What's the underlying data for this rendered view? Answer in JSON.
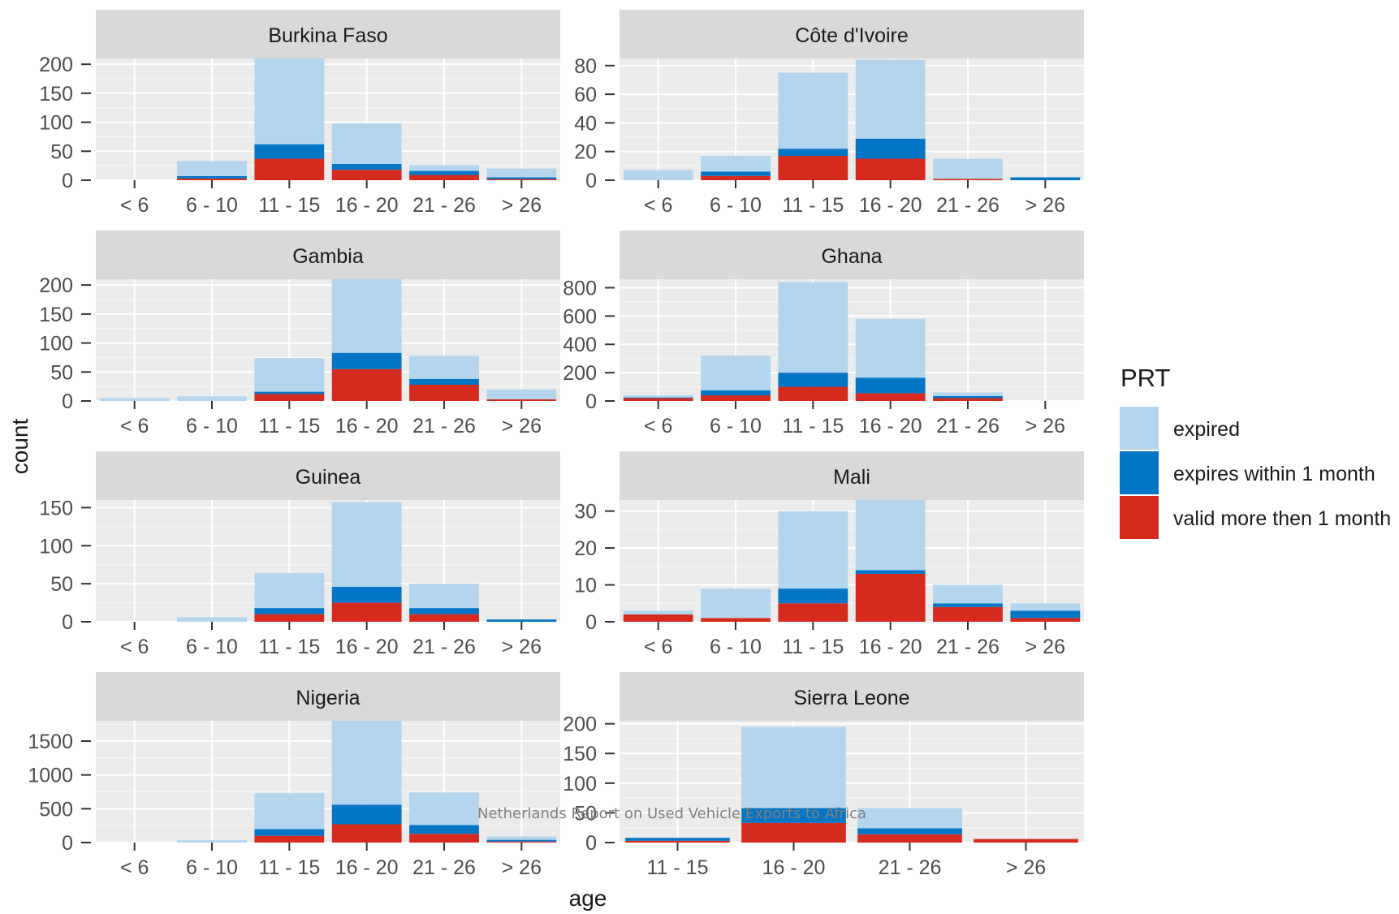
{
  "footer_note": "Netherlands Report on Used Vehicle Exports to Africa",
  "chart_data": {
    "type": "bar",
    "stacked": true,
    "xlabel": "age",
    "ylabel": "count",
    "grid": true,
    "legend_placement": "right",
    "colors": {
      "expired": "#b3d5ee",
      "expires within 1 month": "#0575c6",
      "valid more then 1 month": "#d52b1e",
      "panel_bg": "#ebebeb",
      "strip_bg": "#d9d9d9"
    },
    "legend": {
      "title": "PRT",
      "entries": [
        "expired",
        "expires within 1 month",
        "valid more then 1 month"
      ]
    },
    "facets": [
      {
        "title": "Burkina Faso",
        "categories": [
          "< 6",
          "6 - 10",
          "11 - 15",
          "16 - 20",
          "21 - 26",
          "> 26"
        ],
        "ylim": [
          0,
          210
        ],
        "yticks": [
          0,
          50,
          100,
          150,
          200
        ],
        "series": [
          {
            "name": "valid more then 1 month",
            "values": [
              0,
              3,
              37,
              18,
              9,
              2
            ]
          },
          {
            "name": "expires within 1 month",
            "values": [
              0,
              4,
              25,
              10,
              7,
              3
            ]
          },
          {
            "name": "expired",
            "values": [
              0,
              26,
              148,
              70,
              10,
              15
            ]
          }
        ]
      },
      {
        "title": "Côte d'Ivoire",
        "categories": [
          "< 6",
          "6 - 10",
          "11 - 15",
          "16 - 20",
          "21 - 26",
          "> 26"
        ],
        "ylim": [
          0,
          85
        ],
        "yticks": [
          0,
          20,
          40,
          60,
          80
        ],
        "series": [
          {
            "name": "valid more then 1 month",
            "values": [
              0,
              3,
              17,
              15,
              1,
              0
            ]
          },
          {
            "name": "expires within 1 month",
            "values": [
              0,
              3,
              5,
              14,
              0,
              2
            ]
          },
          {
            "name": "expired",
            "values": [
              7,
              11,
              53,
              55,
              14,
              0
            ]
          }
        ]
      },
      {
        "title": "Gambia",
        "categories": [
          "< 6",
          "6 - 10",
          "11 - 15",
          "16 - 20",
          "21 - 26",
          "> 26"
        ],
        "ylim": [
          0,
          210
        ],
        "yticks": [
          0,
          50,
          100,
          150,
          200
        ],
        "series": [
          {
            "name": "valid more then 1 month",
            "values": [
              0,
              0,
              12,
              55,
              28,
              3
            ]
          },
          {
            "name": "expires within 1 month",
            "values": [
              0,
              0,
              4,
              28,
              10,
              0
            ]
          },
          {
            "name": "expired",
            "values": [
              5,
              8,
              58,
              127,
              40,
              17
            ]
          }
        ]
      },
      {
        "title": "Ghana",
        "categories": [
          "< 6",
          "6 - 10",
          "11 - 15",
          "16 - 20",
          "21 - 26",
          "> 26"
        ],
        "ylim": [
          0,
          860
        ],
        "yticks": [
          0,
          200,
          400,
          600,
          800
        ],
        "series": [
          {
            "name": "valid more then 1 month",
            "values": [
              20,
              40,
              100,
              55,
              20,
              0
            ]
          },
          {
            "name": "expires within 1 month",
            "values": [
              5,
              35,
              100,
              110,
              15,
              0
            ]
          },
          {
            "name": "expired",
            "values": [
              15,
              245,
              640,
              415,
              25,
              0
            ]
          }
        ]
      },
      {
        "title": "Guinea",
        "categories": [
          "< 6",
          "6 - 10",
          "11 - 15",
          "16 - 20",
          "21 - 26",
          "> 26"
        ],
        "ylim": [
          0,
          160
        ],
        "yticks": [
          0,
          50,
          100,
          150
        ],
        "series": [
          {
            "name": "valid more then 1 month",
            "values": [
              0,
              0,
              10,
              25,
              10,
              0
            ]
          },
          {
            "name": "expires within 1 month",
            "values": [
              0,
              0,
              8,
              21,
              8,
              3
            ]
          },
          {
            "name": "expired",
            "values": [
              0,
              6,
              46,
              111,
              32,
              0
            ]
          }
        ]
      },
      {
        "title": "Mali",
        "categories": [
          "< 6",
          "6 - 10",
          "11 - 15",
          "16 - 20",
          "21 - 26",
          "> 26"
        ],
        "ylim": [
          0,
          33
        ],
        "yticks": [
          0,
          10,
          20,
          30
        ],
        "series": [
          {
            "name": "valid more then 1 month",
            "values": [
              2,
              1,
              5,
              13,
              4,
              1
            ]
          },
          {
            "name": "expires within 1 month",
            "values": [
              0,
              0,
              4,
              1,
              1,
              2
            ]
          },
          {
            "name": "expired",
            "values": [
              1,
              8,
              21,
              19,
              5,
              2
            ]
          }
        ]
      },
      {
        "title": "Nigeria",
        "categories": [
          "< 6",
          "6 - 10",
          "11 - 15",
          "16 - 20",
          "21 - 26",
          "> 26"
        ],
        "ylim": [
          0,
          1800
        ],
        "yticks": [
          0,
          500,
          1000,
          1500
        ],
        "series": [
          {
            "name": "valid more then 1 month",
            "values": [
              0,
              0,
              100,
              270,
              130,
              15
            ]
          },
          {
            "name": "expires within 1 month",
            "values": [
              0,
              0,
              100,
              290,
              130,
              25
            ]
          },
          {
            "name": "expired",
            "values": [
              0,
              35,
              530,
              1240,
              480,
              50
            ]
          }
        ]
      },
      {
        "title": "Sierra Leone",
        "categories": [
          "11 - 15",
          "16 - 20",
          "21 - 26",
          "> 26"
        ],
        "ylim": [
          0,
          205
        ],
        "yticks": [
          0,
          50,
          100,
          150,
          200
        ],
        "series": [
          {
            "name": "valid more then 1 month",
            "values": [
              3,
              33,
              14,
              6
            ]
          },
          {
            "name": "expires within 1 month",
            "values": [
              5,
              25,
              10,
              0
            ]
          },
          {
            "name": "expired",
            "values": [
              0,
              137,
              34,
              0
            ]
          }
        ]
      }
    ]
  }
}
